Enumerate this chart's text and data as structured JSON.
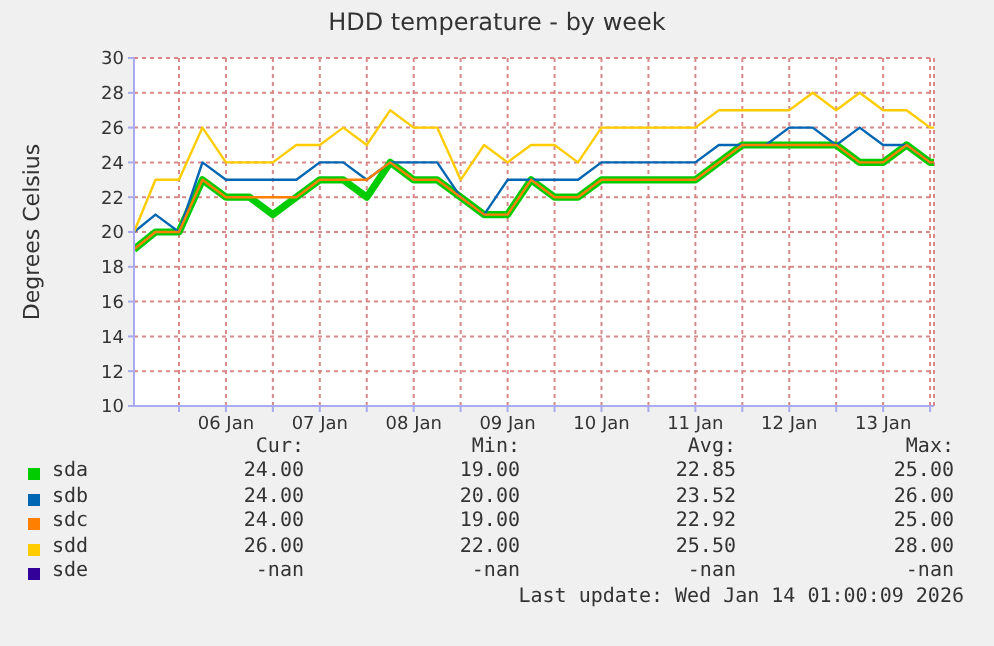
{
  "chart_data": {
    "type": "line",
    "title": "HDD temperature - by week",
    "ylabel": "Degrees Celsius",
    "x": [
      "2026-01-05T12:30",
      "2026-01-05T18:00",
      "2026-01-06T00:00",
      "2026-01-06T06:00",
      "2026-01-06T12:00",
      "2026-01-06T18:00",
      "2026-01-07T00:00",
      "2026-01-07T06:00",
      "2026-01-07T12:00",
      "2026-01-07T18:00",
      "2026-01-08T00:00",
      "2026-01-08T06:00",
      "2026-01-08T12:00",
      "2026-01-08T18:00",
      "2026-01-09T00:00",
      "2026-01-09T06:00",
      "2026-01-09T12:00",
      "2026-01-09T18:00",
      "2026-01-10T00:00",
      "2026-01-10T06:00",
      "2026-01-10T12:00",
      "2026-01-10T18:00",
      "2026-01-11T00:00",
      "2026-01-11T06:00",
      "2026-01-11T12:00",
      "2026-01-11T18:00",
      "2026-01-12T00:00",
      "2026-01-12T06:00",
      "2026-01-12T12:00",
      "2026-01-12T18:00",
      "2026-01-13T00:00",
      "2026-01-13T06:00",
      "2026-01-13T12:00",
      "2026-01-13T18:00",
      "2026-01-14T00:00",
      "2026-01-14T01:00"
    ],
    "series": [
      {
        "name": "sda",
        "color": "#00cc00",
        "values": [
          19,
          20,
          20,
          23,
          22,
          22,
          21,
          22,
          23,
          23,
          22,
          24,
          23,
          23,
          22,
          21,
          21,
          23,
          22,
          22,
          23,
          23,
          23,
          23,
          23,
          24,
          25,
          25,
          25,
          25,
          25,
          24,
          24,
          25,
          24,
          24
        ]
      },
      {
        "name": "sdb",
        "color": "#0066b3",
        "values": [
          20,
          21,
          20,
          24,
          23,
          23,
          23,
          23,
          24,
          24,
          23,
          24,
          24,
          24,
          22,
          21,
          23,
          23,
          23,
          23,
          24,
          24,
          24,
          24,
          24,
          25,
          25,
          25,
          26,
          26,
          25,
          26,
          25,
          25,
          24,
          24
        ]
      },
      {
        "name": "sdc",
        "color": "#ff8000",
        "values": [
          19,
          20,
          20,
          23,
          22,
          22,
          22,
          22,
          23,
          23,
          23,
          24,
          23,
          23,
          22,
          21,
          21,
          23,
          22,
          22,
          23,
          23,
          23,
          23,
          23,
          24,
          25,
          25,
          25,
          25,
          25,
          24,
          24,
          25,
          24,
          24
        ]
      },
      {
        "name": "sdd",
        "color": "#ffcc00",
        "values": [
          20,
          23,
          23,
          26,
          24,
          24,
          24,
          25,
          25,
          26,
          25,
          27,
          26,
          26,
          23,
          25,
          24,
          25,
          25,
          24,
          26,
          26,
          26,
          26,
          26,
          27,
          27,
          27,
          27,
          28,
          27,
          28,
          27,
          27,
          26,
          26
        ]
      },
      {
        "name": "sde",
        "color": "#330099",
        "values": [
          null,
          null,
          null,
          null,
          null,
          null,
          null,
          null,
          null,
          null,
          null,
          null,
          null,
          null,
          null,
          null,
          null,
          null,
          null,
          null,
          null,
          null,
          null,
          null,
          null,
          null,
          null,
          null,
          null,
          null,
          null,
          null,
          null,
          null,
          null,
          null
        ]
      }
    ],
    "xlim": [
      "2026-01-05T12:30",
      "2026-01-14T01:00"
    ],
    "xticks": [
      {
        "value": "2026-01-06T00:00",
        "label": null
      },
      {
        "value": "2026-01-06T12:00",
        "label": "06 Jan"
      },
      {
        "value": "2026-01-07T00:00",
        "label": null
      },
      {
        "value": "2026-01-07T12:00",
        "label": "07 Jan"
      },
      {
        "value": "2026-01-08T00:00",
        "label": null
      },
      {
        "value": "2026-01-08T12:00",
        "label": "08 Jan"
      },
      {
        "value": "2026-01-09T00:00",
        "label": null
      },
      {
        "value": "2026-01-09T12:00",
        "label": "09 Jan"
      },
      {
        "value": "2026-01-10T00:00",
        "label": null
      },
      {
        "value": "2026-01-10T12:00",
        "label": "10 Jan"
      },
      {
        "value": "2026-01-11T00:00",
        "label": null
      },
      {
        "value": "2026-01-11T12:00",
        "label": "11 Jan"
      },
      {
        "value": "2026-01-12T00:00",
        "label": null
      },
      {
        "value": "2026-01-12T12:00",
        "label": "12 Jan"
      },
      {
        "value": "2026-01-13T00:00",
        "label": null
      },
      {
        "value": "2026-01-13T12:00",
        "label": "13 Jan"
      },
      {
        "value": "2026-01-14T00:00",
        "label": null
      }
    ],
    "ylim": [
      10,
      30
    ],
    "yticks": [
      10,
      12,
      14,
      16,
      18,
      20,
      22,
      24,
      26,
      28,
      30
    ],
    "grid": true,
    "legend": "bottom",
    "marker": "none",
    "line_style": "solid",
    "annotations": [
      "Cur:",
      "Min:",
      "Avg:",
      "Max:",
      "24.00",
      "19.00",
      "22.85",
      "25.00",
      "24.00",
      "20.00",
      "23.52",
      "26.00",
      "24.00",
      "19.00",
      "22.92",
      "25.00",
      "26.00",
      "22.00",
      "25.50",
      "28.00",
      "-nan",
      "-nan",
      "-nan",
      "-nan",
      "Last update: Wed Jan 14 01:00:09 2026"
    ]
  }
}
